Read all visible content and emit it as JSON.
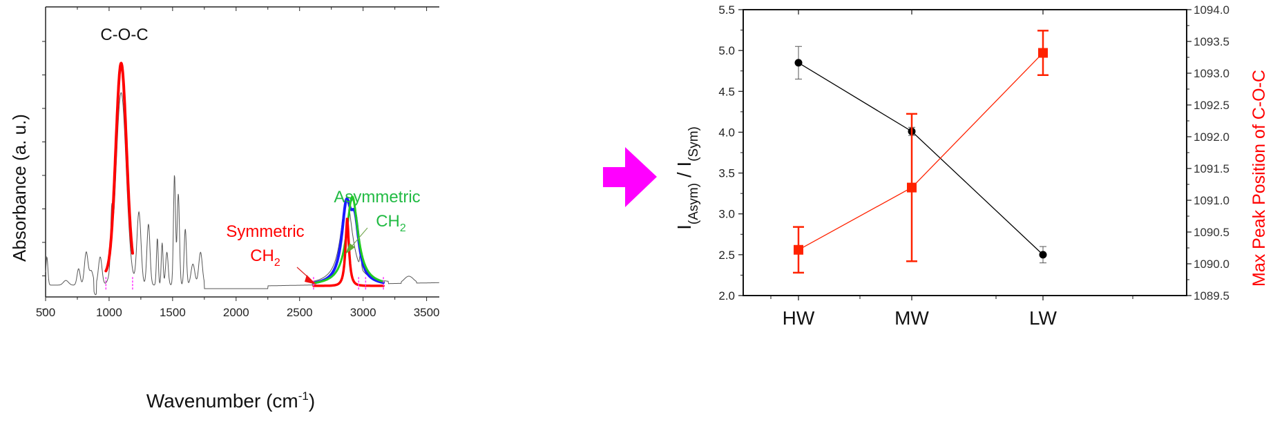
{
  "chart_data": [
    {
      "type": "line",
      "title": "",
      "xlabel": "Wavenumber (cm",
      "xlabel_sup": "-1",
      "xlabel_close": ")",
      "ylabel": "Absorbance (a. u.)",
      "xlim": [
        500,
        3600
      ],
      "xticks": [
        500,
        1000,
        1500,
        2000,
        2500,
        3000,
        3500
      ],
      "xtick_labels": [
        "500",
        "1000",
        "1500",
        "2000",
        "2500",
        "3000",
        "3500"
      ],
      "yticks_unlabeled": true,
      "annotations": {
        "coc": "C-O-C",
        "symmetric": "Symmetric",
        "symmetric_ch": "CH",
        "asymmetric": "Asymmetric",
        "asymmetric_ch": "CH",
        "subscript": "2"
      },
      "spectrum_peaks": [
        {
          "x": 510,
          "h": 0.12,
          "w": 8
        },
        {
          "x": 660,
          "h": 0.02,
          "w": 20
        },
        {
          "x": 760,
          "h": 0.07,
          "w": 12
        },
        {
          "x": 820,
          "h": 0.14,
          "w": 14
        },
        {
          "x": 860,
          "h": 0.06,
          "w": 15
        },
        {
          "x": 930,
          "h": 0.12,
          "w": 14
        },
        {
          "x": 1020,
          "h": 0.2,
          "w": 8
        },
        {
          "x": 1095,
          "h": 0.82,
          "w": 40
        },
        {
          "x": 1235,
          "h": 0.31,
          "w": 16
        },
        {
          "x": 1310,
          "h": 0.26,
          "w": 12
        },
        {
          "x": 1380,
          "h": 0.2,
          "w": 7
        },
        {
          "x": 1418,
          "h": 0.18,
          "w": 7
        },
        {
          "x": 1455,
          "h": 0.14,
          "w": 10
        },
        {
          "x": 1515,
          "h": 0.47,
          "w": 8
        },
        {
          "x": 1545,
          "h": 0.39,
          "w": 9
        },
        {
          "x": 1600,
          "h": 0.24,
          "w": 9
        },
        {
          "x": 1660,
          "h": 0.09,
          "w": 15
        },
        {
          "x": 1720,
          "h": 0.14,
          "w": 14
        }
      ],
      "fits": [
        {
          "name": "C-O-C fit",
          "color": "#ff0000",
          "center": 1095,
          "height": 0.9,
          "sigma": 42,
          "range": [
            975,
            1185
          ]
        },
        {
          "name": "Symmetric CH2 fit",
          "color": "#ff0000",
          "center": 2875,
          "height": 0.29,
          "gamma": 22,
          "range": [
            2610,
            3160
          ]
        },
        {
          "name": "Asymmetric CH2 fit",
          "color": "#22cc22",
          "center": 2915,
          "height": 0.38,
          "gamma": 55,
          "range": [
            2610,
            3160
          ]
        },
        {
          "name": "Envelope fit",
          "color": "#1a1aff",
          "center": 2870,
          "height": 0.42,
          "range": [
            2610,
            3160
          ]
        }
      ]
    },
    {
      "type": "line",
      "categories": [
        "HW",
        "MW",
        "LW"
      ],
      "ylabel_left_main": "I",
      "ylabel_left_sub1": "(Asym)",
      "ylabel_left_mid": " / I",
      "ylabel_left_sub2": "(Sym)",
      "ylabel_right": "Max Peak Position of C-O-C",
      "ylim_left": [
        2.0,
        5.5
      ],
      "yticks_left": [
        "2.0",
        "2.5",
        "3.0",
        "3.5",
        "4.0",
        "4.5",
        "5.0",
        "5.5"
      ],
      "ylim_right": [
        1089.5,
        1094.0
      ],
      "yticks_right": [
        "1089.5",
        "1090.0",
        "1090.5",
        "1091.0",
        "1091.5",
        "1092.0",
        "1092.5",
        "1093.0",
        "1093.5",
        "1094.0"
      ],
      "series": [
        {
          "name": "I(Asym)/I(Sym)",
          "axis": "left",
          "color": "#000000",
          "marker": "circle",
          "values": [
            4.85,
            4.01,
            2.5
          ],
          "errors": [
            0.2,
            0.05,
            0.1
          ]
        },
        {
          "name": "Max Peak Position of C-O-C",
          "axis": "right",
          "color": "#ff2200",
          "marker": "square",
          "values": [
            1090.22,
            1091.2,
            1093.32
          ],
          "errors": [
            0.36,
            1.16,
            0.35
          ]
        }
      ]
    }
  ],
  "arrow": {
    "color": "#ff00ff",
    "meaning": "leads-to"
  }
}
